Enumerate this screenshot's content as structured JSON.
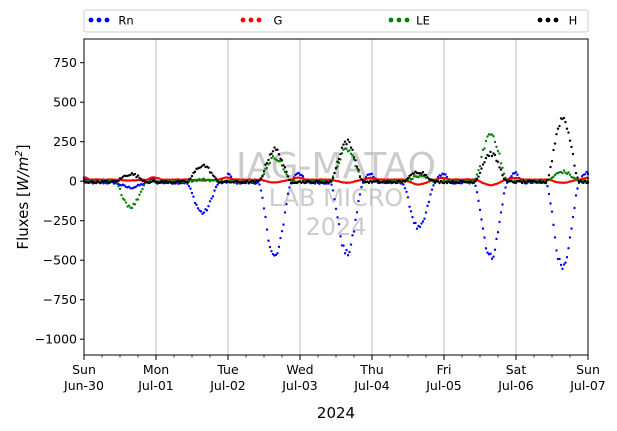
{
  "chart_data": {
    "type": "scatter",
    "xlabel": "2024",
    "ylabel": "Fluxes [W/m²]",
    "ylabel_parts": {
      "base": "Fluxes [",
      "unit": "W/m",
      "sup": "2",
      "close": "]"
    },
    "xlim": [
      0,
      7
    ],
    "ylim": [
      -1100,
      900
    ],
    "yticks": [
      750,
      500,
      250,
      0,
      -250,
      -500,
      -750,
      -1000
    ],
    "ytick_labels": [
      "750",
      "500",
      "250",
      "0",
      "−250",
      "−500",
      "−750",
      "−1000"
    ],
    "xticks": [
      {
        "x": 0,
        "day": "Sun",
        "date": "Jun-30"
      },
      {
        "x": 1,
        "day": "Mon",
        "date": "Jul-01"
      },
      {
        "x": 2,
        "day": "Tue",
        "date": "Jul-02"
      },
      {
        "x": 3,
        "day": "Wed",
        "date": "Jul-03"
      },
      {
        "x": 4,
        "day": "Thu",
        "date": "Jul-04"
      },
      {
        "x": 5,
        "day": "Fri",
        "date": "Jul-05"
      },
      {
        "x": 6,
        "day": "Sat",
        "date": "Jul-06"
      },
      {
        "x": 7,
        "day": "Sun",
        "date": "Jul-07"
      }
    ],
    "grid": "vertical-major",
    "legend": {
      "placement": "top-outside",
      "entries": [
        "Rn",
        "G",
        "LE",
        "H"
      ]
    },
    "series": [
      {
        "name": "Rn",
        "color": "#0000ff",
        "night": -10,
        "peaks": [
          -40,
          -200,
          -480,
          -460,
          -300,
          -480,
          -560
        ],
        "pos": [
          25,
          0,
          65,
          60,
          55,
          60,
          65
        ]
      },
      {
        "name": "G",
        "color": "#ff0000",
        "night": 10,
        "peaks": [
          5,
          5,
          -8,
          -10,
          -20,
          -25,
          -10
        ],
        "pos": [
          15,
          12,
          12,
          10,
          10,
          10,
          10
        ]
      },
      {
        "name": "LE",
        "color": "#008000",
        "night": 0,
        "peaks": [
          -160,
          10,
          150,
          200,
          30,
          300,
          60
        ],
        "pos": [
          0,
          0,
          0,
          0,
          0,
          0,
          0
        ]
      },
      {
        "name": "H",
        "color": "#000000",
        "night": -5,
        "peaks": [
          45,
          100,
          200,
          250,
          60,
          175,
          400
        ],
        "pos": [
          0,
          0,
          0,
          0,
          0,
          0,
          0
        ]
      }
    ],
    "watermark": [
      "IAG-MATAO",
      "LAB MICRO",
      "2024"
    ]
  }
}
